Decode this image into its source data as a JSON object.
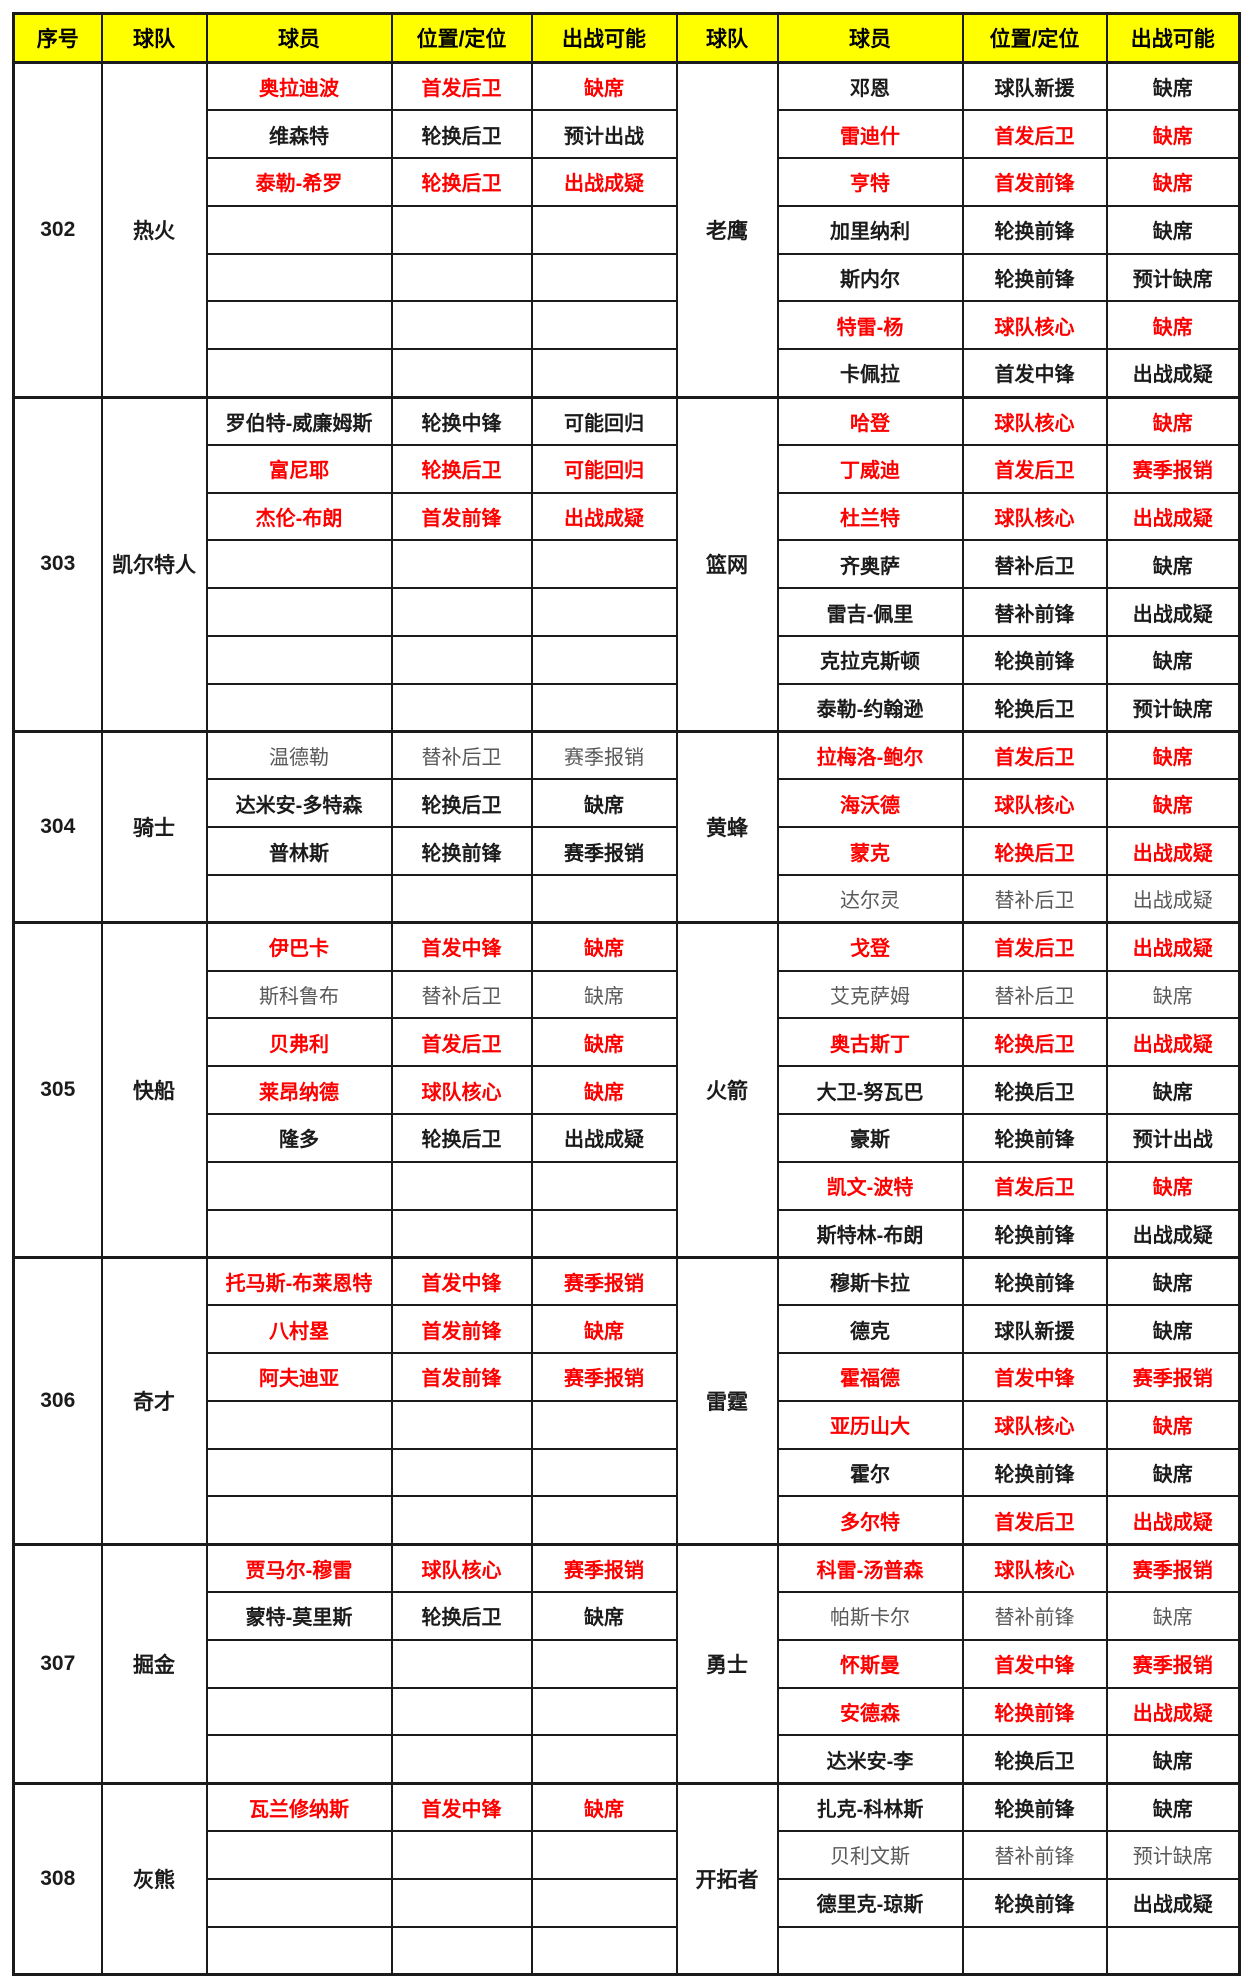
{
  "columns": [
    "序号",
    "球队",
    "球员",
    "位置/定位",
    "出战可能",
    "球队",
    "球员",
    "位置/定位",
    "出战可能"
  ],
  "colors": {
    "header_bg": "#FFFF00",
    "red_text": "#FE0000",
    "black_text": "#1B1B1B",
    "gray_text": "#595959",
    "border": "#1B1B1B"
  },
  "blocks": [
    {
      "id": "302",
      "left_team": "热火",
      "right_team": "老鹰",
      "left_players": [
        {
          "name": "奥拉迪波",
          "position": "首发后卫",
          "status": "缺席",
          "style": "red"
        },
        {
          "name": "维森特",
          "position": "轮换后卫",
          "status": "预计出战",
          "style": "black"
        },
        {
          "name": "泰勒-希罗",
          "position": "轮换后卫",
          "status": "出战成疑",
          "style": "red"
        },
        {
          "name": "",
          "position": "",
          "status": "",
          "style": ""
        },
        {
          "name": "",
          "position": "",
          "status": "",
          "style": ""
        },
        {
          "name": "",
          "position": "",
          "status": "",
          "style": ""
        },
        {
          "name": "",
          "position": "",
          "status": "",
          "style": ""
        }
      ],
      "right_players": [
        {
          "name": "邓恩",
          "position": "球队新援",
          "status": "缺席",
          "style": "black"
        },
        {
          "name": "雷迪什",
          "position": "首发后卫",
          "status": "缺席",
          "style": "red"
        },
        {
          "name": "亨特",
          "position": "首发前锋",
          "status": "缺席",
          "style": "red"
        },
        {
          "name": "加里纳利",
          "position": "轮换前锋",
          "status": "缺席",
          "style": "black"
        },
        {
          "name": "斯内尔",
          "position": "轮换前锋",
          "status": "预计缺席",
          "style": "black"
        },
        {
          "name": "特雷-杨",
          "position": "球队核心",
          "status": "缺席",
          "style": "red"
        },
        {
          "name": "卡佩拉",
          "position": "首发中锋",
          "status": "出战成疑",
          "style": "black"
        }
      ]
    },
    {
      "id": "303",
      "left_team": "凯尔特人",
      "right_team": "篮网",
      "left_players": [
        {
          "name": "罗伯特-威廉姆斯",
          "position": "轮换中锋",
          "status": "可能回归",
          "style": "black"
        },
        {
          "name": "富尼耶",
          "position": "轮换后卫",
          "status": "可能回归",
          "style": "red"
        },
        {
          "name": "杰伦-布朗",
          "position": "首发前锋",
          "status": "出战成疑",
          "style": "red"
        },
        {
          "name": "",
          "position": "",
          "status": "",
          "style": ""
        },
        {
          "name": "",
          "position": "",
          "status": "",
          "style": ""
        },
        {
          "name": "",
          "position": "",
          "status": "",
          "style": ""
        },
        {
          "name": "",
          "position": "",
          "status": "",
          "style": ""
        }
      ],
      "right_players": [
        {
          "name": "哈登",
          "position": "球队核心",
          "status": "缺席",
          "style": "red"
        },
        {
          "name": "丁威迪",
          "position": "首发后卫",
          "status": "赛季报销",
          "style": "red"
        },
        {
          "name": "杜兰特",
          "position": "球队核心",
          "status": "出战成疑",
          "style": "red"
        },
        {
          "name": "齐奥萨",
          "position": "替补后卫",
          "status": "缺席",
          "style": "black"
        },
        {
          "name": "雷吉-佩里",
          "position": "替补前锋",
          "status": "出战成疑",
          "style": "black"
        },
        {
          "name": "克拉克斯顿",
          "position": "轮换前锋",
          "status": "缺席",
          "style": "black"
        },
        {
          "name": "泰勒-约翰逊",
          "position": "轮换后卫",
          "status": "预计缺席",
          "style": "black"
        }
      ]
    },
    {
      "id": "304",
      "left_team": "骑士",
      "right_team": "黄蜂",
      "left_players": [
        {
          "name": "温德勒",
          "position": "替补后卫",
          "status": "赛季报销",
          "style": "gray"
        },
        {
          "name": "达米安-多特森",
          "position": "轮换后卫",
          "status": "缺席",
          "style": "black"
        },
        {
          "name": "普林斯",
          "position": "轮换前锋",
          "status": "赛季报销",
          "style": "black"
        },
        {
          "name": "",
          "position": "",
          "status": "",
          "style": ""
        }
      ],
      "right_players": [
        {
          "name": "拉梅洛-鲍尔",
          "position": "首发后卫",
          "status": "缺席",
          "style": "red"
        },
        {
          "name": "海沃德",
          "position": "球队核心",
          "status": "缺席",
          "style": "red"
        },
        {
          "name": "蒙克",
          "position": "轮换后卫",
          "status": "出战成疑",
          "style": "red"
        },
        {
          "name": "达尔灵",
          "position": "替补后卫",
          "status": "出战成疑",
          "style": "gray"
        }
      ]
    },
    {
      "id": "305",
      "left_team": "快船",
      "right_team": "火箭",
      "left_players": [
        {
          "name": "伊巴卡",
          "position": "首发中锋",
          "status": "缺席",
          "style": "red"
        },
        {
          "name": "斯科鲁布",
          "position": "替补后卫",
          "status": "缺席",
          "style": "gray"
        },
        {
          "name": "贝弗利",
          "position": "首发后卫",
          "status": "缺席",
          "style": "red"
        },
        {
          "name": "莱昂纳德",
          "position": "球队核心",
          "status": "缺席",
          "style": "red"
        },
        {
          "name": "隆多",
          "position": "轮换后卫",
          "status": "出战成疑",
          "style": "black"
        },
        {
          "name": "",
          "position": "",
          "status": "",
          "style": ""
        },
        {
          "name": "",
          "position": "",
          "status": "",
          "style": ""
        }
      ],
      "right_players": [
        {
          "name": "戈登",
          "position": "首发后卫",
          "status": "出战成疑",
          "style": "red"
        },
        {
          "name": "艾克萨姆",
          "position": "替补后卫",
          "status": "缺席",
          "style": "gray"
        },
        {
          "name": "奥古斯丁",
          "position": "轮换后卫",
          "status": "出战成疑",
          "style": "red"
        },
        {
          "name": "大卫-努瓦巴",
          "position": "轮换后卫",
          "status": "缺席",
          "style": "black"
        },
        {
          "name": "豪斯",
          "position": "轮换前锋",
          "status": "预计出战",
          "style": "black"
        },
        {
          "name": "凯文-波特",
          "position": "首发后卫",
          "status": "缺席",
          "style": "red"
        },
        {
          "name": "斯特林-布朗",
          "position": "轮换前锋",
          "status": "出战成疑",
          "style": "black"
        }
      ]
    },
    {
      "id": "306",
      "left_team": "奇才",
      "right_team": "雷霆",
      "left_players": [
        {
          "name": "托马斯-布莱恩特",
          "position": "首发中锋",
          "status": "赛季报销",
          "style": "red"
        },
        {
          "name": "八村塁",
          "position": "首发前锋",
          "status": "缺席",
          "style": "red"
        },
        {
          "name": "阿夫迪亚",
          "position": "首发前锋",
          "status": "赛季报销",
          "style": "red"
        },
        {
          "name": "",
          "position": "",
          "status": "",
          "style": ""
        },
        {
          "name": "",
          "position": "",
          "status": "",
          "style": ""
        },
        {
          "name": "",
          "position": "",
          "status": "",
          "style": ""
        }
      ],
      "right_players": [
        {
          "name": "穆斯卡拉",
          "position": "轮换前锋",
          "status": "缺席",
          "style": "black"
        },
        {
          "name": "德克",
          "position": "球队新援",
          "status": "缺席",
          "style": "black"
        },
        {
          "name": "霍福德",
          "position": "首发中锋",
          "status": "赛季报销",
          "style": "red"
        },
        {
          "name": "亚历山大",
          "position": "球队核心",
          "status": "缺席",
          "style": "red"
        },
        {
          "name": "霍尔",
          "position": "轮换前锋",
          "status": "缺席",
          "style": "black"
        },
        {
          "name": "多尔特",
          "position": "首发后卫",
          "status": "出战成疑",
          "style": "red"
        }
      ]
    },
    {
      "id": "307",
      "left_team": "掘金",
      "right_team": "勇士",
      "left_players": [
        {
          "name": "贾马尔-穆雷",
          "position": "球队核心",
          "status": "赛季报销",
          "style": "red"
        },
        {
          "name": "蒙特-莫里斯",
          "position": "轮换后卫",
          "status": "缺席",
          "style": "black"
        },
        {
          "name": "",
          "position": "",
          "status": "",
          "style": ""
        },
        {
          "name": "",
          "position": "",
          "status": "",
          "style": ""
        },
        {
          "name": "",
          "position": "",
          "status": "",
          "style": ""
        }
      ],
      "right_players": [
        {
          "name": "科雷-汤普森",
          "position": "球队核心",
          "status": "赛季报销",
          "style": "red"
        },
        {
          "name": "帕斯卡尔",
          "position": "替补前锋",
          "status": "缺席",
          "style": "gray"
        },
        {
          "name": "怀斯曼",
          "position": "首发中锋",
          "status": "赛季报销",
          "style": "red"
        },
        {
          "name": "安德森",
          "position": "轮换前锋",
          "status": "出战成疑",
          "style": "red"
        },
        {
          "name": "达米安-李",
          "position": "轮换后卫",
          "status": "缺席",
          "style": "black"
        }
      ]
    },
    {
      "id": "308",
      "left_team": "灰熊",
      "right_team": "开拓者",
      "left_players": [
        {
          "name": "瓦兰修纳斯",
          "position": "首发中锋",
          "status": "缺席",
          "style": "red"
        },
        {
          "name": "",
          "position": "",
          "status": "",
          "style": ""
        },
        {
          "name": "",
          "position": "",
          "status": "",
          "style": ""
        },
        {
          "name": "",
          "position": "",
          "status": "",
          "style": ""
        }
      ],
      "right_players": [
        {
          "name": "扎克-科林斯",
          "position": "轮换前锋",
          "status": "缺席",
          "style": "black"
        },
        {
          "name": "贝利文斯",
          "position": "替补前锋",
          "status": "预计缺席",
          "style": "gray"
        },
        {
          "name": "德里克-琼斯",
          "position": "轮换前锋",
          "status": "出战成疑",
          "style": "black"
        },
        {
          "name": "",
          "position": "",
          "status": "",
          "style": ""
        }
      ]
    }
  ]
}
